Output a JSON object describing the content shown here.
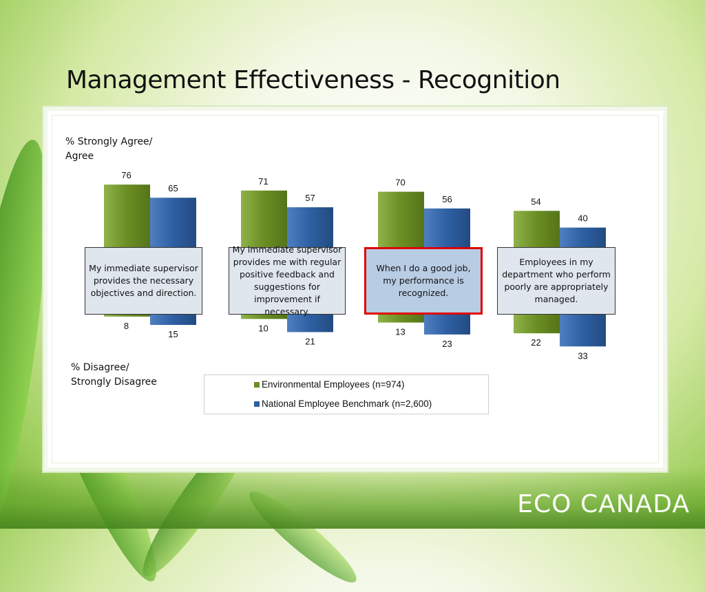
{
  "slide": {
    "title": "Management Effectiveness - Recognition",
    "brand_left": "ECO",
    "brand_right": "CANADA"
  },
  "colors": {
    "env": "#6b8e23",
    "bench": "#2e5fa2",
    "highlight_border": "#e00000"
  },
  "chart_data": {
    "type": "bar",
    "subtype": "diverging",
    "agree_label": "% Strongly Agree/\nAgree",
    "disagree_label": "% Disagree/\nStrongly Disagree",
    "categories": [
      "My immediate supervisor provides the necessary objectives and direction.",
      "My immediate supervisor provides me with regular positive feedback and suggestions for improvement if necessary.",
      "When I do a good job, my performance is recognized.",
      "Employees in my department who perform poorly are appropriately managed."
    ],
    "highlighted_category": 2,
    "series": [
      {
        "name": "Environmental Employees (n=974)",
        "agree": [
          76,
          71,
          70,
          54
        ],
        "disagree": [
          8,
          10,
          13,
          22
        ]
      },
      {
        "name": "National Employee Benchmark (n=2,600)",
        "agree": [
          65,
          57,
          56,
          40
        ],
        "disagree": [
          15,
          21,
          23,
          33
        ]
      }
    ],
    "legend_position": "bottom-center",
    "grid": false
  }
}
